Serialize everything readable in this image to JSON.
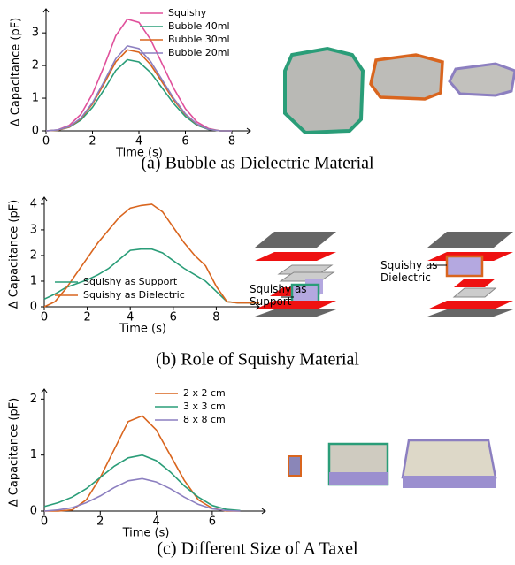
{
  "chart_data": [
    {
      "type": "line",
      "caption": "(a) Bubble as Dielectric Material",
      "x_label": "Time (s)",
      "y_label": "Δ Capacitance (pF)",
      "x": [
        0,
        0.5,
        1,
        1.5,
        2,
        2.5,
        3,
        3.5,
        4,
        4.5,
        5,
        5.5,
        6,
        6.5,
        7,
        7.5,
        8
      ],
      "series": [
        {
          "name": "Squishy",
          "color": "#e0509b",
          "values": [
            0,
            0.03,
            0.17,
            0.51,
            1.13,
            1.98,
            2.91,
            3.42,
            3.32,
            2.8,
            2.05,
            1.3,
            0.68,
            0.27,
            0.07,
            0,
            0
          ]
        },
        {
          "name": "Bubble 40ml",
          "color": "#2a9d78",
          "values": [
            0,
            0.02,
            0.11,
            0.33,
            0.72,
            1.26,
            1.85,
            2.18,
            2.11,
            1.79,
            1.31,
            0.83,
            0.44,
            0.17,
            0.04,
            0,
            0
          ]
        },
        {
          "name": "Bubble 30ml",
          "color": "#d9651e",
          "values": [
            0,
            0.02,
            0.12,
            0.37,
            0.82,
            1.44,
            2.11,
            2.48,
            2.41,
            2.03,
            1.49,
            0.94,
            0.5,
            0.2,
            0.05,
            0,
            0
          ]
        },
        {
          "name": "Bubble 20ml",
          "color": "#8c7fc0",
          "values": [
            0,
            0.03,
            0.13,
            0.39,
            0.86,
            1.51,
            2.21,
            2.6,
            2.52,
            2.13,
            1.56,
            0.99,
            0.52,
            0.21,
            0.05,
            0,
            0
          ]
        }
      ],
      "xlim": [
        0,
        8.8
      ],
      "xticks": [
        0,
        2,
        4,
        6,
        8
      ],
      "ylim": [
        0,
        3.6
      ],
      "yticks": [
        0,
        1,
        2,
        3
      ],
      "legend": "upper right"
    },
    {
      "type": "line",
      "caption": "(b) Role of Squishy Material",
      "x_label": "Time (s)",
      "y_label": "Δ Capacitance (pF)",
      "x": [
        0,
        0.5,
        1,
        1.5,
        2,
        2.5,
        3,
        3.5,
        4,
        4.5,
        5,
        5.5,
        6,
        6.5,
        7,
        7.5,
        8,
        8.5,
        9,
        9.5,
        10
      ],
      "series": [
        {
          "name": "Squishy as Support",
          "color": "#2a9d78",
          "values": [
            0.3,
            0.5,
            0.75,
            0.9,
            1.05,
            1.25,
            1.5,
            1.85,
            2.2,
            2.25,
            2.25,
            2.1,
            1.8,
            1.5,
            1.25,
            1.0,
            0.6,
            0.2,
            0.15,
            0.15,
            0.15
          ]
        },
        {
          "name": "Squishy as Dielectric",
          "color": "#d9651e",
          "values": [
            0,
            0.2,
            0.7,
            1.3,
            1.9,
            2.5,
            3.0,
            3.5,
            3.85,
            3.95,
            4.0,
            3.7,
            3.1,
            2.5,
            2.0,
            1.6,
            0.8,
            0.2,
            0.15,
            0.15,
            0.15
          ]
        }
      ],
      "xlim": [
        0,
        10
      ],
      "xticks": [
        0,
        2,
        4,
        6,
        8
      ],
      "ylim": [
        0,
        4.1
      ],
      "yticks": [
        0,
        1,
        2,
        3,
        4
      ],
      "legend": "lower center",
      "annotations": [
        "Squishy as Support",
        "Squishy as Dielectric"
      ]
    },
    {
      "type": "line",
      "caption": "(c) Different Size of A Taxel",
      "x_label": "Time (s)",
      "y_label": "Δ Capacitance (pF)",
      "x": [
        0,
        0.5,
        1,
        1.5,
        2,
        2.5,
        3,
        3.5,
        4,
        4.5,
        5,
        5.5,
        6,
        6.5,
        7
      ],
      "series": [
        {
          "name": "2 x 2 cm",
          "color": "#d9651e",
          "values": [
            0,
            0,
            0.02,
            0.2,
            0.6,
            1.1,
            1.6,
            1.7,
            1.45,
            1.0,
            0.55,
            0.2,
            0.05,
            0,
            0
          ]
        },
        {
          "name": "3 x 3 cm",
          "color": "#2a9d78",
          "values": [
            0.08,
            0.15,
            0.25,
            0.4,
            0.6,
            0.8,
            0.95,
            1.0,
            0.9,
            0.7,
            0.45,
            0.25,
            0.1,
            0.03,
            0.01
          ]
        },
        {
          "name": "8 x 8 cm",
          "color": "#8c7fc0",
          "values": [
            0,
            0.02,
            0.06,
            0.15,
            0.27,
            0.42,
            0.54,
            0.58,
            0.52,
            0.4,
            0.25,
            0.12,
            0.04,
            0.01,
            0
          ]
        }
      ],
      "xlim": [
        0,
        7.9
      ],
      "xticks": [
        0,
        2,
        4,
        6
      ],
      "ylim": [
        0,
        2.1
      ],
      "yticks": [
        0,
        1,
        2
      ],
      "legend": "upper right"
    }
  ]
}
